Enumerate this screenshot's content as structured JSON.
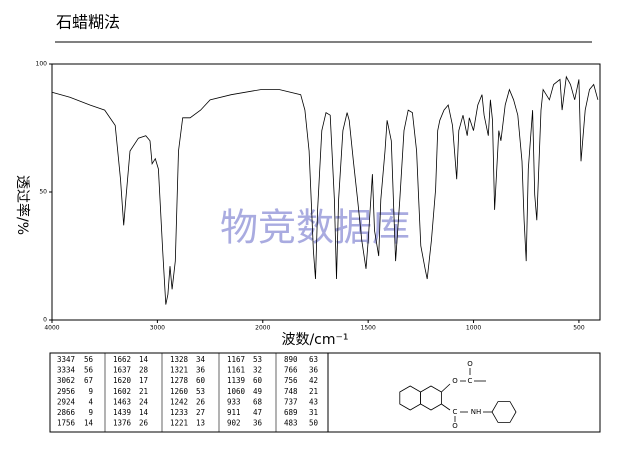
{
  "chart_data": {
    "type": "line",
    "title": "石蜡糊法",
    "xlabel": "波数/cm⁻¹",
    "ylabel": "透过率/%",
    "watermark": "物竞数据库",
    "color": "#000000",
    "xlim": [
      4000,
      400
    ],
    "xticks": [
      4000,
      3000,
      2000,
      1500,
      1000,
      500
    ],
    "x_scale_break": {
      "value": 2000,
      "factor": 2
    },
    "ylim": [
      0,
      100
    ],
    "yticks": [
      0,
      50,
      100
    ],
    "x": [
      4000,
      3830,
      3640,
      3500,
      3400,
      3350,
      3320,
      3300,
      3260,
      3180,
      3110,
      3070,
      3050,
      3020,
      2990,
      2950,
      2920,
      2900,
      2880,
      2860,
      2830,
      2800,
      2760,
      2690,
      2590,
      2500,
      2300,
      2020,
      1920,
      1820,
      1800,
      1780,
      1760,
      1750,
      1740,
      1720,
      1700,
      1680,
      1660,
      1650,
      1640,
      1620,
      1600,
      1590,
      1570,
      1550,
      1530,
      1510,
      1500,
      1480,
      1470,
      1450,
      1440,
      1420,
      1410,
      1390,
      1370,
      1350,
      1330,
      1310,
      1290,
      1270,
      1260,
      1250,
      1230,
      1220,
      1200,
      1180,
      1170,
      1160,
      1140,
      1120,
      1100,
      1080,
      1070,
      1050,
      1030,
      1020,
      1000,
      980,
      960,
      950,
      930,
      920,
      910,
      900,
      880,
      870,
      850,
      830,
      810,
      790,
      770,
      760,
      750,
      740,
      720,
      710,
      700,
      680,
      670,
      640,
      620,
      590,
      580,
      560,
      540,
      520,
      500,
      490,
      470,
      450,
      430,
      410
    ],
    "values": [
      89,
      87,
      84,
      82,
      76,
      55,
      37,
      47,
      66,
      71,
      72,
      70,
      61,
      63,
      59,
      27,
      6,
      10,
      21,
      12,
      23,
      66,
      79,
      79,
      82,
      86,
      88,
      90,
      90,
      88,
      82,
      66,
      27,
      16,
      43,
      74,
      81,
      80,
      47,
      16,
      47,
      74,
      81,
      78,
      62,
      47,
      31,
      20,
      31,
      57,
      35,
      25,
      47,
      66,
      78,
      70,
      23,
      47,
      74,
      82,
      81,
      66,
      47,
      29,
      20,
      16,
      31,
      51,
      74,
      78,
      82,
      84,
      76,
      55,
      74,
      80,
      72,
      79,
      74,
      84,
      88,
      80,
      72,
      86,
      78,
      43,
      74,
      70,
      84,
      90,
      86,
      80,
      62,
      39,
      23,
      59,
      82,
      49,
      39,
      82,
      90,
      86,
      92,
      94,
      82,
      95,
      92,
      86,
      94,
      62,
      82,
      90,
      92,
      86
    ],
    "peak_table": [
      [
        [
          3347,
          56
        ],
        [
          3334,
          56
        ],
        [
          3062,
          67
        ],
        [
          2956,
          9
        ],
        [
          2924,
          4
        ],
        [
          2866,
          9
        ],
        [
          1756,
          14
        ]
      ],
      [
        [
          1662,
          14
        ],
        [
          1637,
          28
        ],
        [
          1620,
          17
        ],
        [
          1602,
          21
        ],
        [
          1463,
          24
        ],
        [
          1439,
          14
        ],
        [
          1376,
          26
        ]
      ],
      [
        [
          1328,
          34
        ],
        [
          1321,
          36
        ],
        [
          1278,
          60
        ],
        [
          1260,
          53
        ],
        [
          1242,
          26
        ],
        [
          1233,
          27
        ],
        [
          1221,
          13
        ]
      ],
      [
        [
          1167,
          53
        ],
        [
          1161,
          32
        ],
        [
          1139,
          60
        ],
        [
          1060,
          49
        ],
        [
          933,
          68
        ],
        [
          911,
          47
        ],
        [
          902,
          36
        ]
      ],
      [
        [
          890,
          63
        ],
        [
          766,
          36
        ],
        [
          756,
          42
        ],
        [
          748,
          21
        ],
        [
          737,
          43
        ],
        [
          689,
          31
        ],
        [
          483,
          50
        ]
      ]
    ],
    "structure_labels": [
      "O",
      "C",
      "O",
      "C",
      "NH",
      "O"
    ]
  }
}
